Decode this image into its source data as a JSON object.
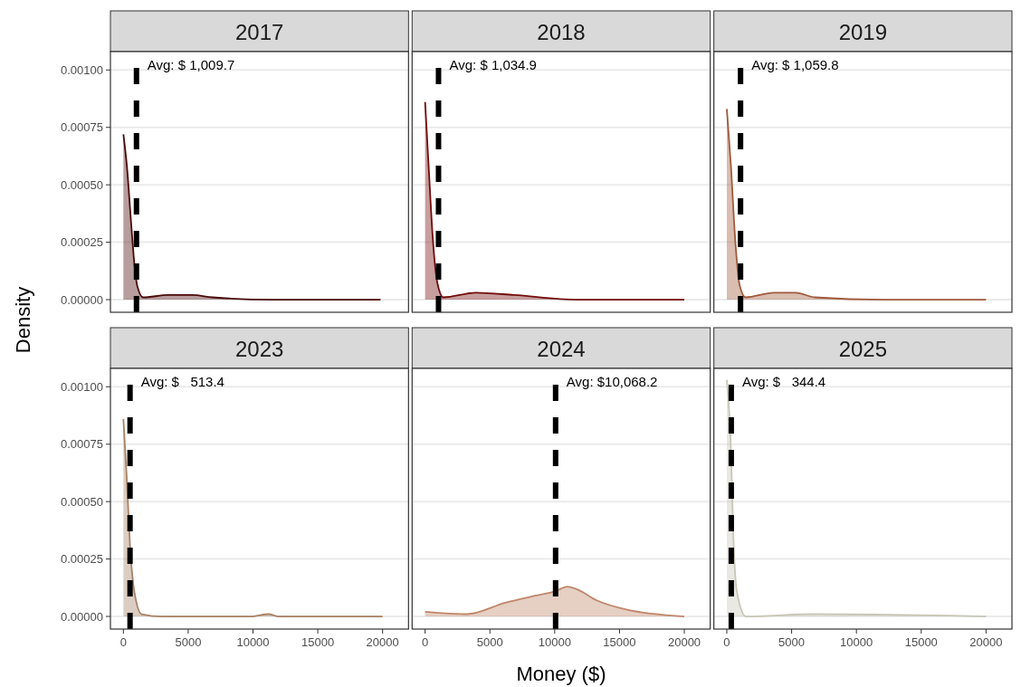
{
  "chart_data": [
    {
      "type": "area",
      "title": "2017",
      "ylabel": "Density",
      "x": [
        0,
        273,
        614,
        841,
        1070,
        1520,
        3460,
        5280,
        6870,
        11420,
        19840
      ],
      "values": [
        0.00072,
        0.00058,
        0.00032,
        0.00016,
        6e-05,
        1e-05,
        2e-05,
        2e-05,
        1e-05,
        0,
        0
      ],
      "color": "#4a0a0a",
      "xlim": [
        -1000,
        22000
      ],
      "ylim": [
        -5.5e-05,
        0.00108
      ],
      "yticks": [
        {
          "value": 0,
          "label": "0.00000"
        },
        {
          "value": 0.00025,
          "label": "0.00025"
        },
        {
          "value": 0.0005,
          "label": "0.00050"
        },
        {
          "value": 0.00075,
          "label": "0.00075"
        },
        {
          "value": 0.001,
          "label": "0.00100"
        }
      ],
      "grid": "y",
      "tick_labels": "y",
      "ref_lines": [
        {
          "axis": "x",
          "value": 1009.7,
          "label": "Avg: $ 1,009.7",
          "color": "#000000",
          "line_style": "dashed"
        }
      ]
    },
    {
      "type": "area",
      "title": "2018",
      "x": [
        0,
        273,
        614,
        955,
        1410,
        3910,
        6870,
        11650,
        20000
      ],
      "values": [
        0.00086,
        0.00058,
        0.00025,
        7e-05,
        1e-05,
        3e-05,
        2e-05,
        0,
        0
      ],
      "color": "#720c0c",
      "xlim": [
        -1000,
        22000
      ],
      "ylim": [
        -5.5e-05,
        0.00108
      ],
      "yticks": [
        {
          "value": 0,
          "label": null
        },
        {
          "value": 0.00025,
          "label": null
        },
        {
          "value": 0.0005,
          "label": null
        },
        {
          "value": 0.00075,
          "label": null
        },
        {
          "value": 0.001,
          "label": null
        }
      ],
      "grid": "y",
      "tick_labels": false,
      "ref_lines": [
        {
          "axis": "x",
          "value": 1034.9,
          "label": "Avg: $ 1,034.9",
          "color": "#000000",
          "line_style": "dashed"
        }
      ]
    },
    {
      "type": "area",
      "title": "2019",
      "x": [
        0,
        320,
        660,
        1000,
        1450,
        3620,
        5320,
        6800,
        12040,
        20000
      ],
      "values": [
        0.00083,
        0.00058,
        0.00025,
        6e-05,
        1e-05,
        3e-05,
        3e-05,
        1e-05,
        0,
        0
      ],
      "color": "#a05a3c",
      "xlim": [
        -1000,
        22000
      ],
      "ylim": [
        -5.5e-05,
        0.00108
      ],
      "yticks": [
        {
          "value": 0,
          "label": null
        },
        {
          "value": 0.00025,
          "label": null
        },
        {
          "value": 0.0005,
          "label": null
        },
        {
          "value": 0.00075,
          "label": null
        },
        {
          "value": 0.001,
          "label": null
        }
      ],
      "grid": "y",
      "tick_labels": false,
      "ref_lines": [
        {
          "axis": "x",
          "value": 1059.8,
          "label": "Avg: $ 1,059.8",
          "color": "#000000",
          "line_style": "dashed"
        }
      ]
    },
    {
      "type": "area",
      "title": "2023",
      "x": [
        0,
        273,
        500,
        840,
        1410,
        3000,
        6850,
        9790,
        11200,
        12000,
        20000
      ],
      "values": [
        0.00086,
        0.00059,
        0.00032,
        0.00011,
        1e-05,
        0,
        0,
        0,
        1e-05,
        0,
        0
      ],
      "color": "#a88266",
      "xlim": [
        -1000,
        22000
      ],
      "ylim": [
        -5.5e-05,
        0.00108
      ],
      "xticks": [
        0,
        5000,
        10000,
        15000,
        20000
      ],
      "yticks": [
        {
          "value": 0,
          "label": "0.00000"
        },
        {
          "value": 0.00025,
          "label": "0.00025"
        },
        {
          "value": 0.0005,
          "label": "0.00050"
        },
        {
          "value": 0.00075,
          "label": "0.00075"
        },
        {
          "value": 0.001,
          "label": "0.00100"
        }
      ],
      "grid": "y",
      "ref_lines": [
        {
          "axis": "x",
          "value": 513.4,
          "label": "Avg: $   513.4",
          "color": "#000000",
          "line_style": "dashed"
        }
      ]
    },
    {
      "type": "area",
      "title": "2024",
      "xlabel": "Money ($)",
      "x": [
        0,
        3230,
        6190,
        8460,
        10060,
        10970,
        11650,
        13240,
        15520,
        20000
      ],
      "values": [
        2e-05,
        1e-05,
        6e-05,
        9e-05,
        0.00011,
        0.00013,
        0.00012,
        7e-05,
        3e-05,
        0
      ],
      "color": "#c0866a",
      "xlim": [
        -1000,
        22000
      ],
      "ylim": [
        -5.5e-05,
        0.00108
      ],
      "xticks": [
        0,
        5000,
        10000,
        15000,
        20000
      ],
      "yticks": [
        {
          "value": 0,
          "label": null
        },
        {
          "value": 0.00025,
          "label": null
        },
        {
          "value": 0.0005,
          "label": null
        },
        {
          "value": 0.00075,
          "label": null
        },
        {
          "value": 0.001,
          "label": null
        }
      ],
      "grid": "y",
      "tick_labels": "x",
      "ref_lines": [
        {
          "axis": "x",
          "value": 10068.2,
          "label": "Avg: $10,068.2",
          "color": "#000000",
          "line_style": "dashed"
        }
      ]
    },
    {
      "type": "area",
      "title": "2025",
      "x": [
        0,
        320,
        480,
        770,
        1480,
        6600,
        20000
      ],
      "values": [
        0.00103,
        0.00072,
        0.00039,
        0.00011,
        0,
        1e-05,
        0
      ],
      "color": "#c8c6b6",
      "xlim": [
        -1000,
        22000
      ],
      "ylim": [
        -5.5e-05,
        0.00108
      ],
      "xticks": [
        0,
        5000,
        10000,
        15000,
        20000
      ],
      "yticks": [
        {
          "value": 0,
          "label": null
        },
        {
          "value": 0.00025,
          "label": null
        },
        {
          "value": 0.0005,
          "label": null
        },
        {
          "value": 0.00075,
          "label": null
        },
        {
          "value": 0.001,
          "label": null
        }
      ],
      "grid": "y",
      "tick_labels": "x",
      "ref_lines": [
        {
          "axis": "x",
          "value": 344.4,
          "label": "Avg: $   344.4",
          "color": "#000000",
          "line_style": "dashed"
        }
      ]
    }
  ]
}
